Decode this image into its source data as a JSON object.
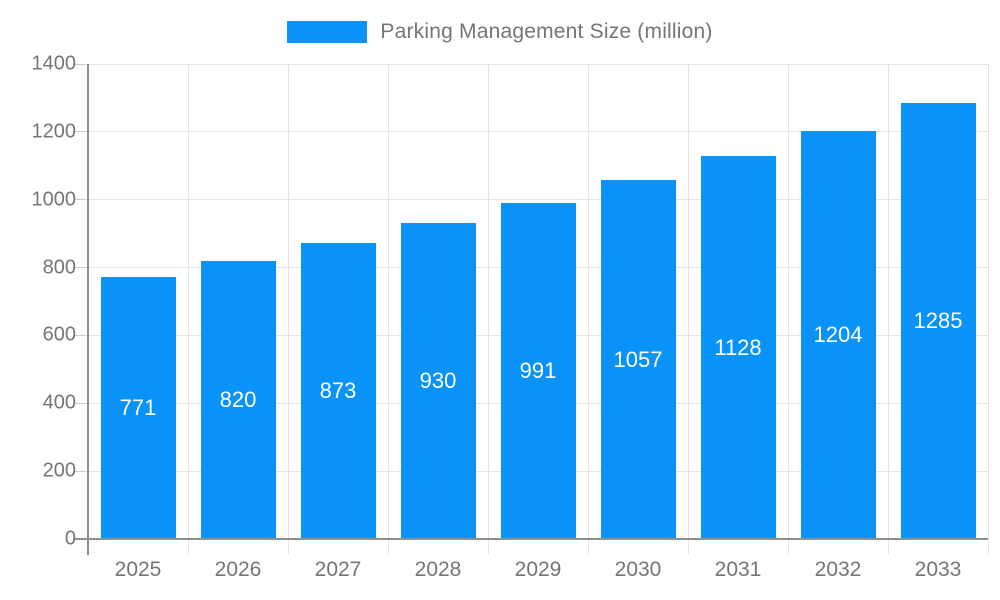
{
  "legend": {
    "label": "Parking Management Size (million)",
    "swatch_color": "#0992f7"
  },
  "chart_data": {
    "type": "bar",
    "title": "Parking Management Size (million)",
    "categories": [
      "2025",
      "2026",
      "2027",
      "2028",
      "2029",
      "2030",
      "2031",
      "2032",
      "2033"
    ],
    "values": [
      771,
      820,
      873,
      930,
      991,
      1057,
      1128,
      1204,
      1285
    ],
    "xlabel": "",
    "ylabel": "",
    "ylim": [
      0,
      1400
    ],
    "ytick_step": 200,
    "grid": true,
    "legend_position": "top",
    "colors": {
      "bar": "#0992f7",
      "bar_label_text": "#ffffff",
      "axis_text": "#757575",
      "grid_line": "#e3e3e3",
      "axis_line": "#8f8f8f",
      "tick_line": "#cccccc",
      "background": "#ffffff"
    }
  }
}
